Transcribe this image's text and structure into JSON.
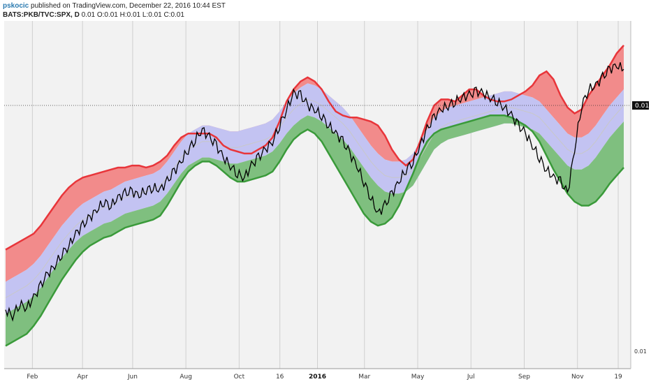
{
  "header": {
    "author": "pskocic",
    "published_text": "published on TradingView.com, December 22, 2016 10:44 EST",
    "symbol": "BATS:PKB/TVC:SPX, D",
    "ohlc": "0.01 O:0.01 H:0.01 L:0.01 C:0.01"
  },
  "price_axis": {
    "last_price_label": "0.01",
    "bottom_label": "0.01"
  },
  "colors": {
    "upper_band": "#e8353a",
    "upper_fill": "#f28b8b",
    "mid_fill": "#c3c3f2",
    "lower_fill": "#7fbf7f",
    "lower_band": "#3a9a3a",
    "basis": "#c8c8c8",
    "price": "#000000",
    "plot_bg": "#f2f2f2",
    "grid": "#cfcfcf"
  },
  "chart_data": {
    "type": "line",
    "x_ticks": [
      "Feb",
      "Apr",
      "Jun",
      "Aug",
      "Oct",
      "16",
      "2016",
      "Mar",
      "May",
      "Jul",
      "Sep",
      "Nov",
      "19"
    ],
    "x_ticks_bold": [
      false,
      false,
      false,
      false,
      false,
      false,
      true,
      false,
      false,
      false,
      false,
      false,
      false
    ],
    "x_tick_pos": [
      0.045,
      0.125,
      0.205,
      0.29,
      0.375,
      0.44,
      0.5,
      0.575,
      0.66,
      0.745,
      0.83,
      0.915,
      0.98
    ],
    "series": [
      {
        "role": "upper",
        "values": [
          0.72,
          0.7,
          0.68,
          0.66,
          0.64,
          0.6,
          0.55,
          0.5,
          0.45,
          0.41,
          0.38,
          0.36,
          0.35,
          0.34,
          0.33,
          0.32,
          0.31,
          0.31,
          0.3,
          0.3,
          0.31,
          0.3,
          0.28,
          0.25,
          0.2,
          0.16,
          0.14,
          0.14,
          0.14,
          0.14,
          0.16,
          0.2,
          0.22,
          0.23,
          0.24,
          0.24,
          0.22,
          0.2,
          0.16,
          0.08,
          -0.02,
          -0.08,
          -0.12,
          -0.14,
          -0.12,
          -0.08,
          -0.02,
          0.03,
          0.05,
          0.06,
          0.06,
          0.07,
          0.08,
          0.1,
          0.15,
          0.22,
          0.27,
          0.3,
          0.27,
          0.18,
          0.08,
          0.0,
          -0.03,
          -0.03,
          -0.02,
          -0.05,
          -0.08,
          -0.08,
          -0.05,
          -0.03,
          -0.02,
          -0.02,
          -0.03,
          -0.05,
          -0.07,
          -0.1,
          -0.15,
          -0.17,
          -0.13,
          -0.05,
          0.01,
          0.04,
          0.02,
          -0.05,
          -0.1,
          -0.15,
          -0.2,
          -0.26,
          -0.3
        ]
      },
      {
        "role": "upper_mid",
        "values": [
          0.88,
          0.86,
          0.84,
          0.82,
          0.79,
          0.75,
          0.7,
          0.65,
          0.6,
          0.56,
          0.52,
          0.49,
          0.47,
          0.45,
          0.43,
          0.42,
          0.4,
          0.38,
          0.37,
          0.36,
          0.35,
          0.34,
          0.32,
          0.28,
          0.23,
          0.18,
          0.14,
          0.12,
          0.1,
          0.1,
          0.11,
          0.12,
          0.13,
          0.13,
          0.12,
          0.11,
          0.1,
          0.09,
          0.07,
          0.03,
          -0.02,
          -0.06,
          -0.09,
          -0.11,
          -0.1,
          -0.08,
          -0.05,
          -0.02,
          0.01,
          0.05,
          0.1,
          0.15,
          0.2,
          0.24,
          0.27,
          0.28,
          0.28,
          0.27,
          0.24,
          0.18,
          0.12,
          0.06,
          0.03,
          0.01,
          0.0,
          -0.01,
          -0.02,
          -0.03,
          -0.04,
          -0.05,
          -0.06,
          -0.07,
          -0.07,
          -0.06,
          -0.05,
          -0.04,
          -0.02,
          0.02,
          0.06,
          0.1,
          0.14,
          0.16,
          0.16,
          0.14,
          0.1,
          0.05,
          0.0,
          -0.04,
          -0.08
        ]
      },
      {
        "role": "basis",
        "values": [
          0.96,
          0.94,
          0.92,
          0.9,
          0.87,
          0.83,
          0.78,
          0.73,
          0.68,
          0.64,
          0.6,
          0.57,
          0.55,
          0.53,
          0.51,
          0.5,
          0.48,
          0.46,
          0.45,
          0.44,
          0.43,
          0.42,
          0.4,
          0.36,
          0.31,
          0.26,
          0.22,
          0.2,
          0.18,
          0.18,
          0.19,
          0.2,
          0.21,
          0.21,
          0.2,
          0.19,
          0.18,
          0.17,
          0.15,
          0.11,
          0.06,
          0.02,
          -0.01,
          -0.03,
          -0.02,
          0.0,
          0.03,
          0.06,
          0.09,
          0.13,
          0.18,
          0.23,
          0.28,
          0.32,
          0.35,
          0.36,
          0.36,
          0.35,
          0.32,
          0.26,
          0.2,
          0.14,
          0.11,
          0.09,
          0.08,
          0.07,
          0.06,
          0.05,
          0.04,
          0.03,
          0.02,
          0.01,
          0.01,
          0.02,
          0.03,
          0.04,
          0.06,
          0.1,
          0.14,
          0.18,
          0.22,
          0.24,
          0.24,
          0.22,
          0.18,
          0.13,
          0.08,
          0.04,
          0.0
        ]
      },
      {
        "role": "lower_mid",
        "values": [
          1.04,
          1.02,
          1.0,
          0.98,
          0.95,
          0.91,
          0.86,
          0.81,
          0.76,
          0.72,
          0.68,
          0.65,
          0.63,
          0.61,
          0.59,
          0.58,
          0.56,
          0.54,
          0.53,
          0.52,
          0.51,
          0.5,
          0.48,
          0.44,
          0.39,
          0.34,
          0.3,
          0.28,
          0.26,
          0.26,
          0.27,
          0.28,
          0.29,
          0.29,
          0.28,
          0.27,
          0.26,
          0.25,
          0.23,
          0.19,
          0.14,
          0.1,
          0.07,
          0.05,
          0.06,
          0.08,
          0.11,
          0.14,
          0.17,
          0.21,
          0.26,
          0.31,
          0.36,
          0.4,
          0.43,
          0.44,
          0.44,
          0.43,
          0.4,
          0.34,
          0.28,
          0.22,
          0.19,
          0.17,
          0.16,
          0.15,
          0.14,
          0.13,
          0.12,
          0.11,
          0.1,
          0.09,
          0.09,
          0.1,
          0.11,
          0.12,
          0.14,
          0.18,
          0.22,
          0.26,
          0.3,
          0.32,
          0.32,
          0.3,
          0.26,
          0.21,
          0.16,
          0.12,
          0.08
        ]
      },
      {
        "role": "lower",
        "values": [
          1.2,
          1.18,
          1.16,
          1.14,
          1.1,
          1.05,
          0.99,
          0.93,
          0.87,
          0.82,
          0.77,
          0.73,
          0.7,
          0.68,
          0.66,
          0.65,
          0.63,
          0.61,
          0.6,
          0.59,
          0.58,
          0.57,
          0.55,
          0.5,
          0.44,
          0.38,
          0.33,
          0.3,
          0.28,
          0.28,
          0.3,
          0.33,
          0.36,
          0.38,
          0.38,
          0.37,
          0.36,
          0.35,
          0.33,
          0.28,
          0.22,
          0.17,
          0.14,
          0.12,
          0.14,
          0.18,
          0.24,
          0.3,
          0.36,
          0.42,
          0.48,
          0.54,
          0.58,
          0.6,
          0.59,
          0.56,
          0.5,
          0.42,
          0.34,
          0.25,
          0.18,
          0.14,
          0.12,
          0.11,
          0.1,
          0.09,
          0.08,
          0.07,
          0.06,
          0.05,
          0.05,
          0.05,
          0.06,
          0.08,
          0.1,
          0.13,
          0.18,
          0.25,
          0.32,
          0.38,
          0.44,
          0.48,
          0.5,
          0.5,
          0.48,
          0.44,
          0.39,
          0.35,
          0.31
        ]
      },
      {
        "role": "price",
        "values": [
          1.02,
          1.05,
          0.99,
          1.01,
          0.96,
          0.9,
          0.84,
          0.8,
          0.74,
          0.7,
          0.64,
          0.6,
          0.56,
          0.52,
          0.48,
          0.5,
          0.46,
          0.44,
          0.43,
          0.45,
          0.42,
          0.41,
          0.42,
          0.38,
          0.33,
          0.28,
          0.22,
          0.17,
          0.12,
          0.16,
          0.2,
          0.26,
          0.3,
          0.34,
          0.36,
          0.3,
          0.26,
          0.22,
          0.18,
          0.1,
          0.02,
          -0.06,
          -0.05,
          0.0,
          0.02,
          0.05,
          0.1,
          0.14,
          0.18,
          0.24,
          0.3,
          0.38,
          0.46,
          0.54,
          0.5,
          0.44,
          0.38,
          0.32,
          0.28,
          0.2,
          0.12,
          0.06,
          0.02,
          0.0,
          -0.02,
          -0.04,
          -0.05,
          -0.07,
          -0.06,
          -0.04,
          -0.02,
          0.01,
          0.05,
          0.1,
          0.14,
          0.2,
          0.26,
          0.32,
          0.36,
          0.38,
          0.44,
          0.22,
          0.0,
          -0.08,
          -0.1,
          -0.14,
          -0.18,
          -0.2,
          -0.18
        ]
      }
    ]
  }
}
